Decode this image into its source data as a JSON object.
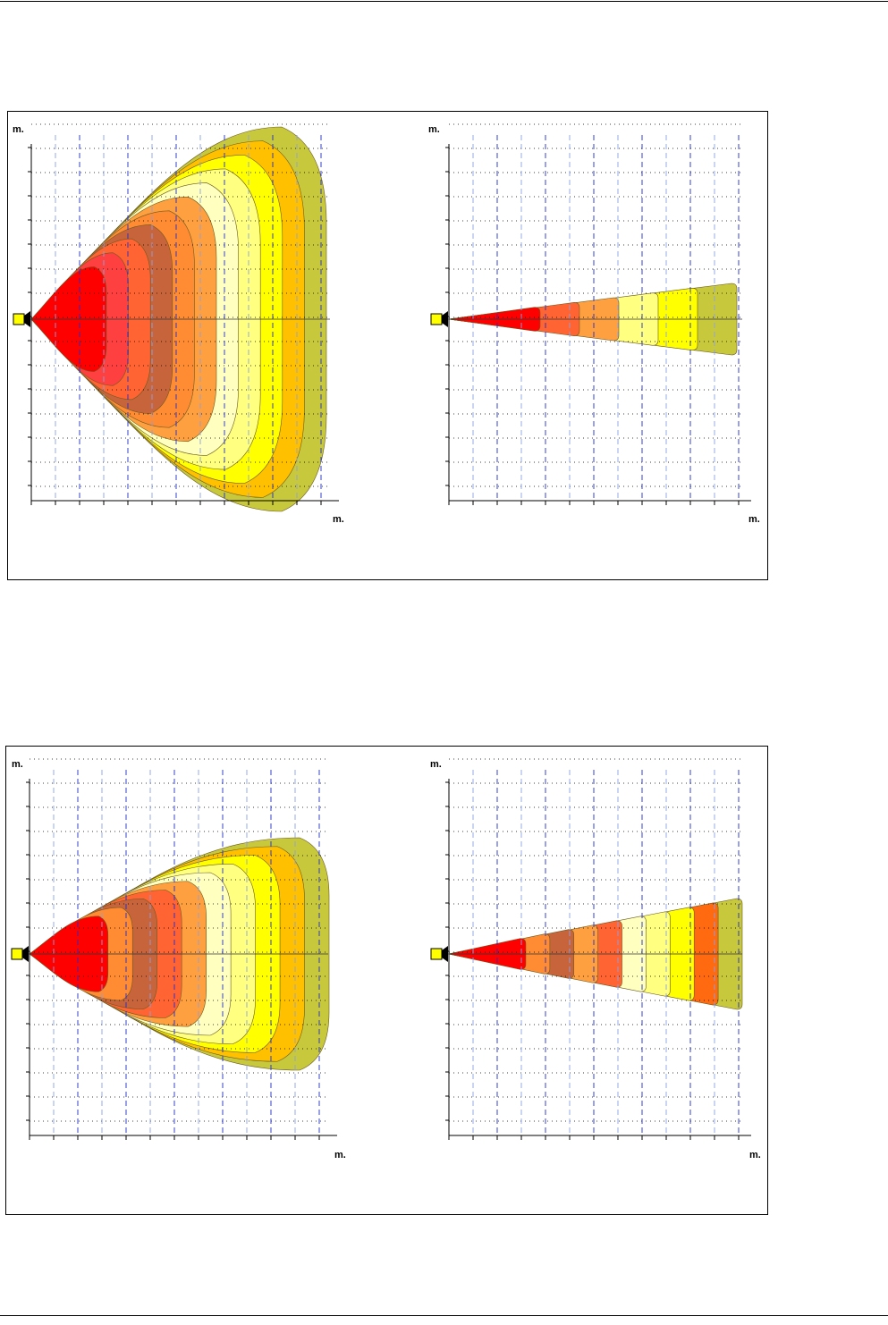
{
  "document": {
    "figures": [
      {
        "plots": [
          {
            "y_unit": "m.",
            "x_unit": "m.",
            "pattern": "wide_fan",
            "colors": [
              "#c8c83c",
              "#ffc000",
              "#ffff00",
              "#ffff80",
              "#ffffc0",
              "#ffa040",
              "#ff8c32",
              "#c8643c",
              "#ff6432",
              "#ff4040",
              "#ff0000"
            ]
          },
          {
            "y_unit": "m.",
            "x_unit": "m.",
            "pattern": "narrow_beam",
            "colors": [
              "#c8c83c",
              "#ffff00",
              "#ffff80",
              "#ffa040",
              "#ff6432",
              "#ff0000"
            ]
          }
        ]
      },
      {
        "plots": [
          {
            "y_unit": "m.",
            "x_unit": "m.",
            "pattern": "medium_fan",
            "colors": [
              "#c8c83c",
              "#ffc000",
              "#ffff00",
              "#ffff80",
              "#ffffc0",
              "#ffa040",
              "#ff6432",
              "#c8643c",
              "#ff8c32",
              "#ff0000"
            ]
          },
          {
            "y_unit": "m.",
            "x_unit": "m.",
            "pattern": "medium_beam",
            "colors": [
              "#c8c83c",
              "#ff6a10",
              "#ffff00",
              "#ffff80",
              "#ffffc0",
              "#ff6432",
              "#ffa040",
              "#c8643c",
              "#ff8c32",
              "#ff0000"
            ]
          }
        ]
      }
    ]
  }
}
